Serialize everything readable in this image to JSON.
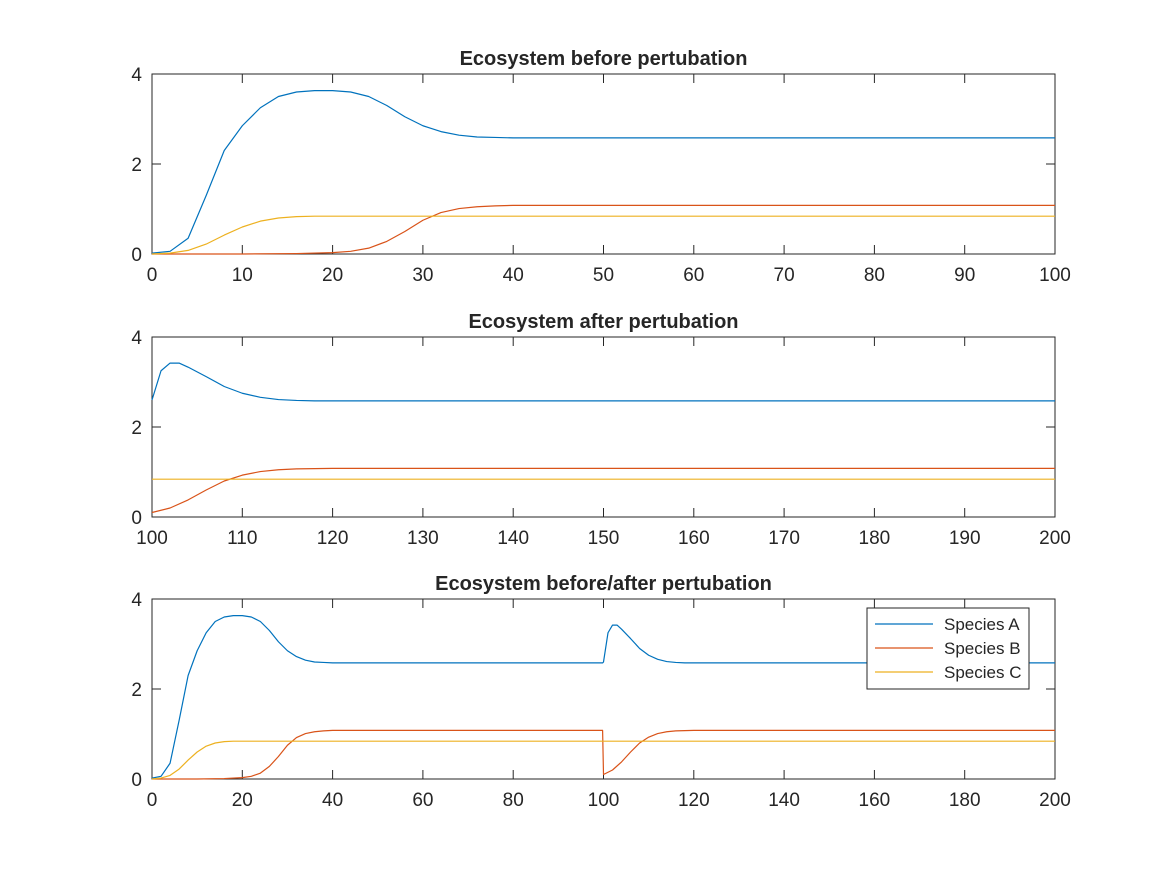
{
  "chart_data": [
    {
      "type": "line",
      "title": "Ecosystem before pertubation",
      "xlim": [
        0,
        100
      ],
      "ylim": [
        0,
        4
      ],
      "xticks": [
        "0",
        "10",
        "20",
        "30",
        "40",
        "50",
        "60",
        "70",
        "80",
        "90",
        "100"
      ],
      "yticks": [
        "0",
        "2",
        "4"
      ],
      "grid": false,
      "legend": null,
      "series": [
        {
          "name": "Species A",
          "color": "#0072bd",
          "points": [
            [
              0,
              0.02
            ],
            [
              2,
              0.06
            ],
            [
              4,
              0.35
            ],
            [
              6,
              1.3
            ],
            [
              8,
              2.3
            ],
            [
              10,
              2.85
            ],
            [
              12,
              3.25
            ],
            [
              14,
              3.5
            ],
            [
              16,
              3.6
            ],
            [
              18,
              3.63
            ],
            [
              20,
              3.63
            ],
            [
              22,
              3.6
            ],
            [
              24,
              3.5
            ],
            [
              26,
              3.3
            ],
            [
              28,
              3.05
            ],
            [
              30,
              2.85
            ],
            [
              32,
              2.72
            ],
            [
              34,
              2.64
            ],
            [
              36,
              2.6
            ],
            [
              38,
              2.59
            ],
            [
              40,
              2.58
            ],
            [
              50,
              2.58
            ],
            [
              60,
              2.58
            ],
            [
              70,
              2.58
            ],
            [
              80,
              2.58
            ],
            [
              90,
              2.58
            ],
            [
              100,
              2.58
            ]
          ]
        },
        {
          "name": "Species B",
          "color": "#d95319",
          "points": [
            [
              0,
              0
            ],
            [
              10,
              0
            ],
            [
              16,
              0.01
            ],
            [
              20,
              0.03
            ],
            [
              22,
              0.06
            ],
            [
              24,
              0.13
            ],
            [
              26,
              0.28
            ],
            [
              28,
              0.5
            ],
            [
              30,
              0.75
            ],
            [
              32,
              0.92
            ],
            [
              34,
              1.01
            ],
            [
              36,
              1.05
            ],
            [
              38,
              1.07
            ],
            [
              40,
              1.08
            ],
            [
              50,
              1.08
            ],
            [
              60,
              1.08
            ],
            [
              70,
              1.08
            ],
            [
              80,
              1.08
            ],
            [
              90,
              1.08
            ],
            [
              100,
              1.08
            ]
          ]
        },
        {
          "name": "Species C",
          "color": "#edb120",
          "points": [
            [
              0,
              0
            ],
            [
              2,
              0.02
            ],
            [
              4,
              0.08
            ],
            [
              6,
              0.22
            ],
            [
              8,
              0.42
            ],
            [
              10,
              0.6
            ],
            [
              12,
              0.73
            ],
            [
              14,
              0.8
            ],
            [
              16,
              0.83
            ],
            [
              18,
              0.84
            ],
            [
              20,
              0.84
            ],
            [
              40,
              0.84
            ],
            [
              60,
              0.84
            ],
            [
              80,
              0.84
            ],
            [
              100,
              0.84
            ]
          ]
        }
      ]
    },
    {
      "type": "line",
      "title": "Ecosystem after pertubation",
      "xlim": [
        100,
        200
      ],
      "ylim": [
        0,
        4
      ],
      "xticks": [
        "100",
        "110",
        "120",
        "130",
        "140",
        "150",
        "160",
        "170",
        "180",
        "190",
        "200"
      ],
      "yticks": [
        "0",
        "2",
        "4"
      ],
      "grid": false,
      "legend": null,
      "series": [
        {
          "name": "Species A",
          "color": "#0072bd",
          "points": [
            [
              100,
              2.6
            ],
            [
              101,
              3.25
            ],
            [
              102,
              3.42
            ],
            [
              103,
              3.42
            ],
            [
              104,
              3.33
            ],
            [
              106,
              3.12
            ],
            [
              108,
              2.9
            ],
            [
              110,
              2.75
            ],
            [
              112,
              2.66
            ],
            [
              114,
              2.61
            ],
            [
              116,
              2.59
            ],
            [
              118,
              2.58
            ],
            [
              130,
              2.58
            ],
            [
              150,
              2.58
            ],
            [
              170,
              2.58
            ],
            [
              190,
              2.58
            ],
            [
              200,
              2.58
            ]
          ]
        },
        {
          "name": "Species B",
          "color": "#d95319",
          "points": [
            [
              100,
              0.1
            ],
            [
              102,
              0.2
            ],
            [
              104,
              0.38
            ],
            [
              106,
              0.6
            ],
            [
              108,
              0.8
            ],
            [
              110,
              0.93
            ],
            [
              112,
              1.01
            ],
            [
              114,
              1.05
            ],
            [
              116,
              1.07
            ],
            [
              120,
              1.08
            ],
            [
              140,
              1.08
            ],
            [
              160,
              1.08
            ],
            [
              180,
              1.08
            ],
            [
              200,
              1.08
            ]
          ]
        },
        {
          "name": "Species C",
          "color": "#edb120",
          "points": [
            [
              100,
              0.84
            ],
            [
              150,
              0.84
            ],
            [
              200,
              0.84
            ]
          ]
        }
      ]
    },
    {
      "type": "line",
      "title": "Ecosystem before/after pertubation",
      "xlim": [
        0,
        200
      ],
      "ylim": [
        0,
        4
      ],
      "xticks": [
        "0",
        "20",
        "40",
        "60",
        "80",
        "100",
        "120",
        "140",
        "160",
        "180",
        "200"
      ],
      "yticks": [
        "0",
        "2",
        "4"
      ],
      "grid": false,
      "legend": "top-right",
      "series": [
        {
          "name": "Species A",
          "color": "#0072bd",
          "points": [
            [
              0,
              0.02
            ],
            [
              2,
              0.06
            ],
            [
              4,
              0.35
            ],
            [
              6,
              1.3
            ],
            [
              8,
              2.3
            ],
            [
              10,
              2.85
            ],
            [
              12,
              3.25
            ],
            [
              14,
              3.5
            ],
            [
              16,
              3.6
            ],
            [
              18,
              3.63
            ],
            [
              20,
              3.63
            ],
            [
              22,
              3.6
            ],
            [
              24,
              3.5
            ],
            [
              26,
              3.3
            ],
            [
              28,
              3.05
            ],
            [
              30,
              2.85
            ],
            [
              32,
              2.72
            ],
            [
              34,
              2.64
            ],
            [
              36,
              2.6
            ],
            [
              38,
              2.59
            ],
            [
              40,
              2.58
            ],
            [
              60,
              2.58
            ],
            [
              80,
              2.58
            ],
            [
              99.8,
              2.58
            ],
            [
              100,
              2.6
            ],
            [
              101,
              3.25
            ],
            [
              102,
              3.42
            ],
            [
              103,
              3.42
            ],
            [
              104,
              3.33
            ],
            [
              106,
              3.12
            ],
            [
              108,
              2.9
            ],
            [
              110,
              2.75
            ],
            [
              112,
              2.66
            ],
            [
              114,
              2.61
            ],
            [
              116,
              2.59
            ],
            [
              118,
              2.58
            ],
            [
              140,
              2.58
            ],
            [
              160,
              2.58
            ],
            [
              180,
              2.58
            ],
            [
              200,
              2.58
            ]
          ]
        },
        {
          "name": "Species B",
          "color": "#d95319",
          "points": [
            [
              0,
              0
            ],
            [
              10,
              0
            ],
            [
              16,
              0.01
            ],
            [
              20,
              0.03
            ],
            [
              22,
              0.06
            ],
            [
              24,
              0.13
            ],
            [
              26,
              0.28
            ],
            [
              28,
              0.5
            ],
            [
              30,
              0.75
            ],
            [
              32,
              0.92
            ],
            [
              34,
              1.01
            ],
            [
              36,
              1.05
            ],
            [
              38,
              1.07
            ],
            [
              40,
              1.08
            ],
            [
              60,
              1.08
            ],
            [
              80,
              1.08
            ],
            [
              99.8,
              1.08
            ],
            [
              100,
              0.1
            ],
            [
              102,
              0.2
            ],
            [
              104,
              0.38
            ],
            [
              106,
              0.6
            ],
            [
              108,
              0.8
            ],
            [
              110,
              0.93
            ],
            [
              112,
              1.01
            ],
            [
              114,
              1.05
            ],
            [
              116,
              1.07
            ],
            [
              120,
              1.08
            ],
            [
              140,
              1.08
            ],
            [
              160,
              1.08
            ],
            [
              180,
              1.08
            ],
            [
              200,
              1.08
            ]
          ]
        },
        {
          "name": "Species C",
          "color": "#edb120",
          "points": [
            [
              0,
              0
            ],
            [
              2,
              0.02
            ],
            [
              4,
              0.08
            ],
            [
              6,
              0.22
            ],
            [
              8,
              0.42
            ],
            [
              10,
              0.6
            ],
            [
              12,
              0.73
            ],
            [
              14,
              0.8
            ],
            [
              16,
              0.83
            ],
            [
              18,
              0.84
            ],
            [
              20,
              0.84
            ],
            [
              60,
              0.84
            ],
            [
              100,
              0.84
            ],
            [
              140,
              0.84
            ],
            [
              200,
              0.84
            ]
          ]
        }
      ]
    }
  ]
}
